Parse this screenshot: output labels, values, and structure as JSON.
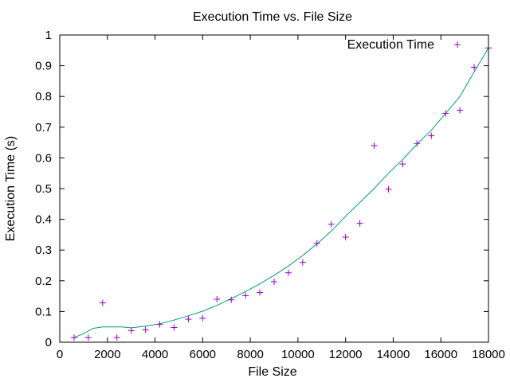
{
  "chart_data": {
    "type": "scatter",
    "title": "Execution Time vs. File Size",
    "xlabel": "File Size",
    "ylabel": "Execution Time (s)",
    "xlim": [
      0,
      18000
    ],
    "ylim": [
      0,
      1
    ],
    "xticks": [
      "0",
      "2000",
      "4000",
      "6000",
      "8000",
      "10000",
      "12000",
      "14000",
      "16000",
      "18000"
    ],
    "yticks": [
      "0",
      "0.1",
      "0.2",
      "0.3",
      "0.4",
      "0.5",
      "0.6",
      "0.7",
      "0.8",
      "0.9",
      "1"
    ],
    "grid": false,
    "legend_position": "top-right",
    "series": [
      {
        "name": "Execution Time",
        "kind": "points",
        "marker": "plus",
        "color": "#9400d3",
        "x": [
          600,
          1200,
          1800,
          2400,
          3000,
          3600,
          4200,
          4800,
          5400,
          6000,
          6600,
          7200,
          7800,
          8400,
          9000,
          9600,
          10200,
          10800,
          11400,
          12000,
          12600,
          13200,
          13800,
          14400,
          15000,
          15600,
          16200,
          16800,
          17400,
          18000
        ],
        "y": [
          0.015,
          0.015,
          0.128,
          0.015,
          0.038,
          0.04,
          0.058,
          0.048,
          0.075,
          0.078,
          0.14,
          0.138,
          0.152,
          0.162,
          0.197,
          0.226,
          0.26,
          0.322,
          0.384,
          0.342,
          0.387,
          0.64,
          0.498,
          0.58,
          0.647,
          0.672,
          0.745,
          0.755,
          0.895,
          0.958
        ]
      },
      {
        "name": "",
        "kind": "line",
        "color": "#009e73",
        "x": [
          600,
          1000,
          1400,
          1800,
          2200,
          2600,
          3000,
          3600,
          4200,
          4800,
          5400,
          6000,
          6600,
          7200,
          7800,
          8400,
          9000,
          9600,
          10200,
          10800,
          11400,
          12000,
          12600,
          13200,
          13800,
          14400,
          15000,
          15600,
          16200,
          16800,
          17400,
          18000
        ],
        "y": [
          0.015,
          0.028,
          0.045,
          0.05,
          0.05,
          0.05,
          0.047,
          0.052,
          0.06,
          0.072,
          0.086,
          0.101,
          0.12,
          0.142,
          0.165,
          0.19,
          0.218,
          0.248,
          0.282,
          0.32,
          0.362,
          0.41,
          0.455,
          0.5,
          0.55,
          0.595,
          0.645,
          0.69,
          0.745,
          0.8,
          0.88,
          0.958
        ]
      }
    ]
  }
}
